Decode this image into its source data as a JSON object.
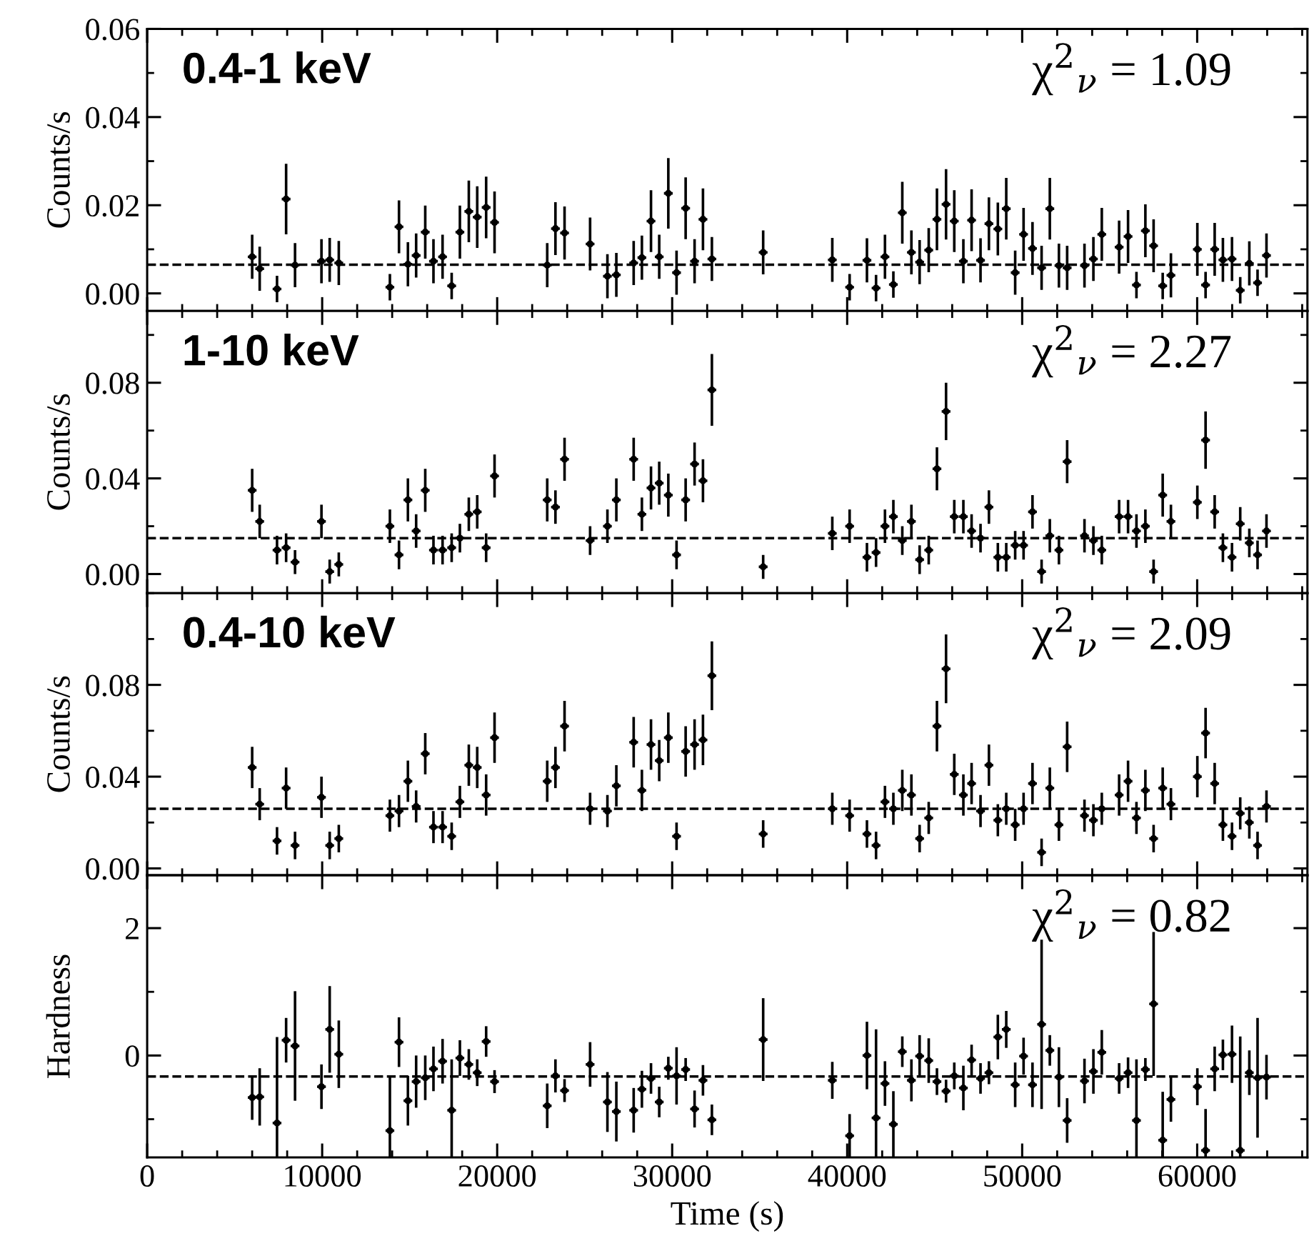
{
  "chart_data": [
    {
      "type": "scatter",
      "title": "0.4-1 keV",
      "ylabel": "Counts/s",
      "annotations": [
        "χ$^{2}$$_{ν}$ = 1.09"
      ],
      "marker": "circle",
      "tick_labels": "y",
      "xlim": [
        0,
        66300
      ],
      "xticks": [
        0,
        10000,
        20000,
        30000,
        40000,
        50000,
        60000
      ],
      "ylim": [
        -0.004,
        0.06
      ],
      "yticks": [
        {
          "value": 0,
          "label": "0.00"
        },
        {
          "value": 0.02,
          "label": "0.02"
        },
        {
          "value": 0.04,
          "label": "0.04"
        },
        {
          "value": 0.06,
          "label": "0.06"
        }
      ],
      "ref_lines": [
        {
          "axis": "y",
          "value": 0.0065,
          "line_style": "dashed",
          "color": "#000000"
        }
      ],
      "x": [
        6000,
        6430,
        7420,
        7940,
        8450,
        9960,
        10430,
        10950,
        13870,
        14390,
        14900,
        15370,
        15890,
        16360,
        16880,
        17400,
        17870,
        18380,
        18860,
        19370,
        19850,
        22860,
        23330,
        23850,
        25310,
        26300,
        26810,
        27800,
        28270,
        28790,
        29260,
        29780,
        30250,
        30770,
        31280,
        31760,
        32270,
        35200,
        39150,
        40140,
        41130,
        41650,
        42160,
        42640,
        43150,
        43670,
        44140,
        44660,
        45130,
        45650,
        46120,
        46640,
        47110,
        47620,
        48100,
        48610,
        49090,
        49600,
        50080,
        50590,
        51110,
        51580,
        52100,
        52570,
        53560,
        54070,
        54550,
        55540,
        56050,
        56530,
        57040,
        57510,
        58030,
        58500,
        60010,
        60480,
        61000,
        61470,
        61990,
        62460,
        62980,
        63450,
        63960
      ],
      "series": [
        {
          "color": "#000000",
          "values": [
            0.0083,
            0.0056,
            0.001,
            0.0214,
            0.0064,
            0.0073,
            0.0076,
            0.0069,
            0.0014,
            0.0151,
            0.0066,
            0.0086,
            0.0139,
            0.0073,
            0.0083,
            0.0017,
            0.0139,
            0.0186,
            0.0173,
            0.0195,
            0.0161,
            0.0064,
            0.0147,
            0.0137,
            0.0112,
            0.0039,
            0.0042,
            0.0069,
            0.0081,
            0.0164,
            0.0083,
            0.0227,
            0.0047,
            0.0193,
            0.0073,
            0.0168,
            0.0078,
            0.0093,
            0.0076,
            0.0014,
            0.0075,
            0.0012,
            0.0083,
            0.002,
            0.0183,
            0.0093,
            0.0071,
            0.0098,
            0.0168,
            0.0202,
            0.0164,
            0.0073,
            0.0166,
            0.0075,
            0.0158,
            0.0146,
            0.0192,
            0.0047,
            0.0134,
            0.0102,
            0.0058,
            0.0192,
            0.0063,
            0.0058,
            0.0063,
            0.0078,
            0.0134,
            0.0105,
            0.0129,
            0.0019,
            0.0142,
            0.0108,
            0.0017,
            0.0041,
            0.01,
            0.0019,
            0.01,
            0.0076,
            0.0078,
            0.0007,
            0.0068,
            0.0024,
            0.0086
          ],
          "errors": [
            0.005,
            0.005,
            0.003,
            0.008,
            0.005,
            0.005,
            0.005,
            0.005,
            0.003,
            0.006,
            0.005,
            0.005,
            0.006,
            0.005,
            0.005,
            0.003,
            0.006,
            0.007,
            0.007,
            0.007,
            0.007,
            0.005,
            0.006,
            0.006,
            0.006,
            0.005,
            0.005,
            0.005,
            0.005,
            0.007,
            0.005,
            0.008,
            0.005,
            0.007,
            0.005,
            0.007,
            0.005,
            0.005,
            0.005,
            0.003,
            0.005,
            0.003,
            0.005,
            0.003,
            0.007,
            0.005,
            0.005,
            0.005,
            0.007,
            0.008,
            0.007,
            0.005,
            0.007,
            0.005,
            0.006,
            0.006,
            0.007,
            0.005,
            0.006,
            0.006,
            0.005,
            0.007,
            0.005,
            0.005,
            0.005,
            0.005,
            0.006,
            0.006,
            0.006,
            0.003,
            0.006,
            0.006,
            0.003,
            0.005,
            0.006,
            0.003,
            0.006,
            0.005,
            0.005,
            0.003,
            0.005,
            0.003,
            0.005
          ],
          "xerrors": [
            250,
            250,
            250,
            250,
            250,
            250,
            250,
            250,
            250,
            250,
            250,
            250,
            250,
            250,
            250,
            250,
            250,
            250,
            250,
            250,
            250,
            250,
            250,
            250,
            250,
            250,
            250,
            250,
            250,
            250,
            250,
            250,
            250,
            250,
            250,
            250,
            250,
            250,
            250,
            250,
            250,
            250,
            250,
            250,
            250,
            250,
            250,
            250,
            250,
            250,
            250,
            250,
            250,
            250,
            250,
            250,
            250,
            250,
            250,
            250,
            250,
            250,
            250,
            250,
            250,
            250,
            250,
            250,
            250,
            250,
            250,
            250,
            250,
            250,
            250,
            250,
            250,
            250,
            250,
            250,
            250,
            250,
            250
          ]
        }
      ]
    },
    {
      "type": "scatter",
      "title": "1-10 keV",
      "ylabel": "Counts/s",
      "annotations": [
        "χ$^{2}$$_{ν}$ = 2.27"
      ],
      "marker": "circle",
      "tick_labels": "y",
      "xlim": [
        0,
        66300
      ],
      "xticks": [
        0,
        10000,
        20000,
        30000,
        40000,
        50000,
        60000
      ],
      "ylim": [
        -0.008,
        0.11
      ],
      "yticks": [
        {
          "value": 0,
          "label": "0.00"
        },
        {
          "value": 0.04,
          "label": "0.04"
        },
        {
          "value": 0.08,
          "label": "0.08"
        }
      ],
      "ref_lines": [
        {
          "axis": "y",
          "value": 0.015,
          "line_style": "dashed",
          "color": "#000000"
        }
      ],
      "x": [
        6000,
        6430,
        7420,
        7940,
        8450,
        9960,
        10430,
        10950,
        13870,
        14390,
        14900,
        15370,
        15890,
        16360,
        16880,
        17400,
        17870,
        18380,
        18860,
        19370,
        19850,
        22860,
        23330,
        23850,
        25310,
        26300,
        26810,
        27800,
        28270,
        28790,
        29260,
        29780,
        30250,
        30770,
        31280,
        31760,
        32270,
        35200,
        39150,
        40140,
        41130,
        41650,
        42160,
        42640,
        43150,
        43670,
        44140,
        44660,
        45130,
        45650,
        46120,
        46640,
        47110,
        47620,
        48100,
        48610,
        49090,
        49600,
        50080,
        50590,
        51110,
        51580,
        52100,
        52570,
        53560,
        54070,
        54550,
        55540,
        56050,
        56530,
        57040,
        57510,
        58030,
        58500,
        60010,
        60480,
        61000,
        61470,
        61990,
        62460,
        62980,
        63450,
        63960
      ],
      "series": [
        {
          "color": "#000000",
          "values": [
            0.035,
            0.022,
            0.01,
            0.011,
            0.005,
            0.022,
            0.001,
            0.004,
            0.02,
            0.008,
            0.031,
            0.018,
            0.035,
            0.01,
            0.01,
            0.011,
            0.015,
            0.025,
            0.026,
            0.011,
            0.041,
            0.031,
            0.028,
            0.048,
            0.014,
            0.02,
            0.031,
            0.048,
            0.025,
            0.036,
            0.038,
            0.033,
            0.008,
            0.031,
            0.046,
            0.039,
            0.077,
            0.003,
            0.017,
            0.02,
            0.007,
            0.009,
            0.02,
            0.024,
            0.014,
            0.022,
            0.006,
            0.01,
            0.044,
            0.068,
            0.024,
            0.024,
            0.018,
            0.015,
            0.028,
            0.007,
            0.007,
            0.012,
            0.012,
            0.026,
            0.001,
            0.016,
            0.01,
            0.047,
            0.016,
            0.014,
            0.01,
            0.024,
            0.024,
            0.018,
            0.02,
            0.001,
            0.033,
            0.022,
            0.03,
            0.056,
            0.026,
            0.011,
            0.007,
            0.021,
            0.013,
            0.008,
            0.018
          ],
          "errors": [
            0.009,
            0.007,
            0.006,
            0.006,
            0.005,
            0.007,
            0.005,
            0.005,
            0.007,
            0.006,
            0.009,
            0.007,
            0.009,
            0.006,
            0.006,
            0.006,
            0.006,
            0.007,
            0.007,
            0.006,
            0.009,
            0.009,
            0.007,
            0.009,
            0.006,
            0.007,
            0.009,
            0.009,
            0.007,
            0.009,
            0.009,
            0.009,
            0.006,
            0.009,
            0.009,
            0.009,
            0.015,
            0.005,
            0.007,
            0.007,
            0.006,
            0.006,
            0.007,
            0.007,
            0.006,
            0.007,
            0.006,
            0.006,
            0.009,
            0.012,
            0.007,
            0.007,
            0.007,
            0.006,
            0.007,
            0.006,
            0.006,
            0.006,
            0.006,
            0.007,
            0.005,
            0.007,
            0.006,
            0.009,
            0.007,
            0.006,
            0.006,
            0.007,
            0.007,
            0.007,
            0.007,
            0.005,
            0.009,
            0.007,
            0.007,
            0.012,
            0.007,
            0.006,
            0.006,
            0.007,
            0.006,
            0.006,
            0.007
          ],
          "xerrors": [
            250,
            250,
            250,
            250,
            250,
            250,
            250,
            250,
            250,
            250,
            250,
            250,
            250,
            250,
            250,
            250,
            250,
            250,
            250,
            250,
            250,
            250,
            250,
            250,
            250,
            250,
            250,
            250,
            250,
            250,
            250,
            250,
            250,
            250,
            250,
            250,
            250,
            250,
            250,
            250,
            250,
            250,
            250,
            250,
            250,
            250,
            250,
            250,
            250,
            250,
            250,
            250,
            250,
            250,
            250,
            250,
            250,
            250,
            250,
            250,
            250,
            250,
            250,
            250,
            250,
            250,
            250,
            250,
            250,
            250,
            250,
            250,
            250,
            250,
            250,
            250,
            250,
            250,
            250,
            250,
            250,
            250,
            250
          ]
        }
      ]
    },
    {
      "type": "scatter",
      "title": "0.4-10 keV",
      "ylabel": "Counts/s",
      "annotations": [
        "χ$^{2}$$_{ν}$ = 2.09"
      ],
      "marker": "circle",
      "tick_labels": "y",
      "xlim": [
        0,
        66300
      ],
      "xticks": [
        0,
        10000,
        20000,
        30000,
        40000,
        50000,
        60000
      ],
      "ylim": [
        -0.003,
        0.12
      ],
      "yticks": [
        {
          "value": 0,
          "label": "0.00"
        },
        {
          "value": 0.04,
          "label": "0.04"
        },
        {
          "value": 0.08,
          "label": "0.08"
        }
      ],
      "ref_lines": [
        {
          "axis": "y",
          "value": 0.026,
          "line_style": "dashed",
          "color": "#000000"
        }
      ],
      "x": [
        6000,
        6430,
        7420,
        7940,
        8450,
        9960,
        10430,
        10950,
        13870,
        14390,
        14900,
        15370,
        15890,
        16360,
        16880,
        17400,
        17870,
        18380,
        18860,
        19370,
        19850,
        22860,
        23330,
        23850,
        25310,
        26300,
        26810,
        27800,
        28270,
        28790,
        29260,
        29780,
        30250,
        30770,
        31280,
        31760,
        32270,
        35200,
        39150,
        40140,
        41130,
        41650,
        42160,
        42640,
        43150,
        43670,
        44140,
        44660,
        45130,
        45650,
        46120,
        46640,
        47110,
        47620,
        48100,
        48610,
        49090,
        49600,
        50080,
        50590,
        51110,
        51580,
        52100,
        52570,
        53560,
        54070,
        54550,
        55540,
        56050,
        56530,
        57040,
        57510,
        58030,
        58500,
        60010,
        60480,
        61000,
        61470,
        61990,
        62460,
        62980,
        63450,
        63960
      ],
      "series": [
        {
          "color": "#000000",
          "values": [
            0.044,
            0.028,
            0.012,
            0.035,
            0.01,
            0.031,
            0.01,
            0.013,
            0.023,
            0.025,
            0.038,
            0.027,
            0.05,
            0.018,
            0.018,
            0.014,
            0.029,
            0.045,
            0.044,
            0.032,
            0.057,
            0.038,
            0.044,
            0.062,
            0.026,
            0.025,
            0.036,
            0.055,
            0.034,
            0.054,
            0.047,
            0.057,
            0.014,
            0.051,
            0.054,
            0.056,
            0.084,
            0.015,
            0.026,
            0.023,
            0.015,
            0.01,
            0.029,
            0.026,
            0.034,
            0.032,
            0.013,
            0.022,
            0.062,
            0.087,
            0.041,
            0.032,
            0.037,
            0.025,
            0.045,
            0.021,
            0.026,
            0.019,
            0.026,
            0.037,
            0.007,
            0.035,
            0.019,
            0.053,
            0.023,
            0.021,
            0.026,
            0.032,
            0.038,
            0.022,
            0.034,
            0.013,
            0.035,
            0.028,
            0.04,
            0.059,
            0.037,
            0.019,
            0.014,
            0.024,
            0.02,
            0.01,
            0.027
          ],
          "errors": [
            0.009,
            0.007,
            0.006,
            0.009,
            0.006,
            0.009,
            0.006,
            0.006,
            0.007,
            0.007,
            0.009,
            0.007,
            0.009,
            0.007,
            0.007,
            0.006,
            0.007,
            0.009,
            0.009,
            0.009,
            0.011,
            0.009,
            0.009,
            0.011,
            0.007,
            0.007,
            0.009,
            0.011,
            0.009,
            0.011,
            0.009,
            0.011,
            0.006,
            0.011,
            0.011,
            0.011,
            0.015,
            0.006,
            0.007,
            0.007,
            0.006,
            0.006,
            0.007,
            0.007,
            0.009,
            0.009,
            0.006,
            0.007,
            0.011,
            0.015,
            0.009,
            0.009,
            0.009,
            0.007,
            0.009,
            0.007,
            0.007,
            0.007,
            0.007,
            0.009,
            0.006,
            0.009,
            0.007,
            0.011,
            0.007,
            0.007,
            0.007,
            0.009,
            0.009,
            0.007,
            0.009,
            0.006,
            0.009,
            0.007,
            0.009,
            0.011,
            0.009,
            0.007,
            0.006,
            0.007,
            0.007,
            0.006,
            0.007
          ],
          "xerrors": [
            250,
            250,
            250,
            250,
            250,
            250,
            250,
            250,
            250,
            250,
            250,
            250,
            250,
            250,
            250,
            250,
            250,
            250,
            250,
            250,
            250,
            250,
            250,
            250,
            250,
            250,
            250,
            250,
            250,
            250,
            250,
            250,
            250,
            250,
            250,
            250,
            250,
            250,
            250,
            250,
            250,
            250,
            250,
            250,
            250,
            250,
            250,
            250,
            250,
            250,
            250,
            250,
            250,
            250,
            250,
            250,
            250,
            250,
            250,
            250,
            250,
            250,
            250,
            250,
            250,
            250,
            250,
            250,
            250,
            250,
            250,
            250,
            250,
            250,
            250,
            250,
            250,
            250,
            250,
            250,
            250,
            250,
            250
          ]
        }
      ]
    },
    {
      "type": "scatter",
      "xlabel": "Time (s)",
      "ylabel": "Hardness",
      "annotations": [
        "χ$^{2}$$_{ν}$ = 0.82"
      ],
      "marker": "circle",
      "xlim": [
        0,
        66300
      ],
      "xticks": [
        0,
        10000,
        20000,
        30000,
        40000,
        50000,
        60000
      ],
      "ylim": [
        -1.6,
        2.83
      ],
      "yticks": [
        0,
        2
      ],
      "ref_lines": [
        {
          "axis": "y",
          "value": -0.33,
          "line_style": "dashed",
          "color": "#000000"
        }
      ],
      "x": [
        6000,
        6430,
        7420,
        7940,
        8450,
        9960,
        10430,
        10950,
        13870,
        14390,
        14900,
        15370,
        15890,
        16360,
        16880,
        17400,
        17870,
        18380,
        18860,
        19370,
        19850,
        22860,
        23330,
        23850,
        25310,
        26300,
        26810,
        27800,
        28270,
        28790,
        29260,
        29780,
        30250,
        30770,
        31280,
        31760,
        32270,
        35200,
        39150,
        40140,
        41130,
        41650,
        42160,
        42640,
        43150,
        43670,
        44140,
        44660,
        45130,
        45650,
        46120,
        46640,
        47110,
        47620,
        48100,
        48610,
        49090,
        49600,
        50080,
        50590,
        51110,
        51580,
        52100,
        52570,
        53560,
        54070,
        54550,
        55540,
        56050,
        56530,
        57040,
        57510,
        58030,
        58500,
        60010,
        60480,
        61000,
        61470,
        61990,
        62460,
        62980,
        63450,
        63960
      ],
      "series": [
        {
          "color": "#000000",
          "values": [
            -0.66,
            -0.65,
            -1.06,
            0.24,
            0.15,
            -0.49,
            0.41,
            0.02,
            -1.18,
            0.21,
            -0.71,
            -0.41,
            -0.35,
            -0.21,
            -0.09,
            -0.86,
            -0.04,
            -0.14,
            -0.27,
            0.22,
            -0.41,
            -0.79,
            -0.32,
            -0.55,
            -0.14,
            -0.73,
            -0.88,
            -0.86,
            -0.53,
            -0.36,
            -0.73,
            -0.2,
            -0.32,
            -0.22,
            -0.84,
            -0.39,
            -1.01,
            0.25,
            -0.39,
            -1.26,
            0.0,
            -0.98,
            -0.44,
            -1.08,
            0.06,
            -0.39,
            -0.01,
            -0.08,
            -0.41,
            -0.56,
            -0.32,
            -0.51,
            -0.07,
            -0.36,
            -0.27,
            0.29,
            0.41,
            -0.46,
            -0.01,
            -0.46,
            0.49,
            0.08,
            -0.34,
            -1.02,
            -0.4,
            -0.25,
            0.05,
            -0.36,
            -0.27,
            -1.02,
            -0.22,
            0.81,
            -1.33,
            -0.69,
            -0.49,
            -1.49,
            -0.21,
            0.01,
            0.02,
            -1.49,
            -0.27,
            -0.35,
            -0.34
          ],
          "errors": [
            0.35,
            0.45,
            [
              -1.6,
              0.29
            ],
            0.35,
            0.86,
            0.35,
            0.68,
            0.53,
            [
              -1.6,
              -0.32
            ],
            0.39,
            0.39,
            0.41,
            0.35,
            0.35,
            0.35,
            [
              -1.6,
              -0.06
            ],
            0.28,
            0.24,
            0.21,
            0.24,
            0.18,
            0.35,
            0.26,
            0.18,
            0.35,
            0.47,
            0.47,
            0.35,
            0.29,
            0.24,
            0.24,
            0.18,
            0.45,
            0.18,
            0.29,
            0.24,
            0.24,
            0.65,
            0.29,
            0.34,
            0.53,
            [
              -1.6,
              0.41
            ],
            0.35,
            0.52,
            0.24,
            0.33,
            0.33,
            0.35,
            0.21,
            0.18,
            0.21,
            0.35,
            0.24,
            0.24,
            0.18,
            0.35,
            0.29,
            0.35,
            0.29,
            0.35,
            1.33,
            0.24,
            0.47,
            0.35,
            0.35,
            0.35,
            0.35,
            0.24,
            0.24,
            [
              -1.6,
              -0.06
            ],
            0.18,
            1.13,
            [
              -1.6,
              -0.57
            ],
            0.35,
            0.29,
            [
              -1.6,
              -0.84
            ],
            0.35,
            0.24,
            0.45,
            [
              -1.6,
              0.3
            ],
            0.35,
            0.94,
            0.35
          ],
          "xerrors": [
            250,
            250,
            250,
            250,
            250,
            250,
            250,
            250,
            250,
            250,
            250,
            250,
            250,
            250,
            250,
            250,
            250,
            250,
            250,
            250,
            250,
            250,
            250,
            250,
            250,
            250,
            250,
            250,
            250,
            250,
            250,
            250,
            250,
            250,
            250,
            250,
            250,
            250,
            250,
            250,
            250,
            250,
            250,
            250,
            250,
            250,
            250,
            250,
            250,
            250,
            250,
            250,
            250,
            250,
            250,
            250,
            250,
            250,
            250,
            250,
            250,
            250,
            250,
            250,
            250,
            250,
            250,
            250,
            250,
            250,
            250,
            250,
            250,
            250,
            250,
            250,
            250,
            250,
            250,
            250,
            250,
            250,
            250
          ]
        }
      ]
    }
  ]
}
